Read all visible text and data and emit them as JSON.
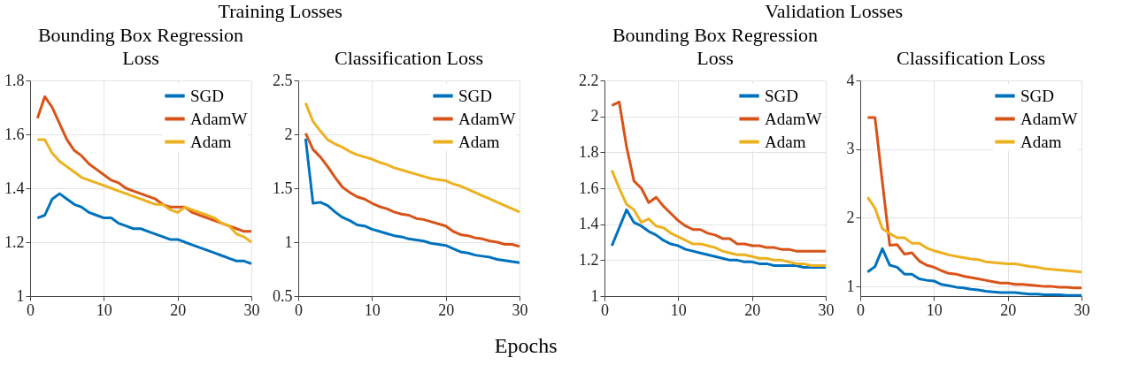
{
  "chart_data": [
    {
      "type": "line",
      "title": "Bounding Box Regression Loss",
      "annotations": [
        "Training Losses"
      ],
      "x": [
        1,
        2,
        3,
        4,
        5,
        6,
        7,
        8,
        9,
        10,
        11,
        12,
        13,
        14,
        15,
        16,
        17,
        18,
        19,
        20,
        21,
        22,
        23,
        24,
        25,
        26,
        27,
        28,
        29,
        30
      ],
      "xlim": [
        0,
        30
      ],
      "xticks": [
        0,
        10,
        20,
        30
      ],
      "ylim": [
        1,
        1.8
      ],
      "yticks": [
        1,
        1.2,
        1.4,
        1.6,
        1.8
      ],
      "grid": true,
      "legend": "top right",
      "line_style": "solid",
      "series": [
        {
          "name": "SGD",
          "color": "#0072bd",
          "values": [
            1.29,
            1.3,
            1.36,
            1.38,
            1.36,
            1.34,
            1.33,
            1.31,
            1.3,
            1.29,
            1.29,
            1.27,
            1.26,
            1.25,
            1.25,
            1.24,
            1.23,
            1.22,
            1.21,
            1.21,
            1.2,
            1.19,
            1.18,
            1.17,
            1.16,
            1.15,
            1.14,
            1.13,
            1.13,
            1.12
          ]
        },
        {
          "name": "AdamW",
          "color": "#d95319",
          "values": [
            1.66,
            1.74,
            1.7,
            1.64,
            1.58,
            1.54,
            1.52,
            1.49,
            1.47,
            1.45,
            1.43,
            1.42,
            1.4,
            1.39,
            1.38,
            1.37,
            1.36,
            1.34,
            1.33,
            1.33,
            1.33,
            1.31,
            1.3,
            1.29,
            1.28,
            1.27,
            1.26,
            1.25,
            1.24,
            1.24
          ]
        },
        {
          "name": "Adam",
          "color": "#edb120",
          "values": [
            1.58,
            1.58,
            1.53,
            1.5,
            1.48,
            1.46,
            1.44,
            1.43,
            1.42,
            1.41,
            1.4,
            1.39,
            1.38,
            1.37,
            1.36,
            1.35,
            1.34,
            1.34,
            1.32,
            1.31,
            1.33,
            1.32,
            1.31,
            1.3,
            1.29,
            1.27,
            1.26,
            1.23,
            1.22,
            1.2
          ]
        }
      ]
    },
    {
      "type": "line",
      "title": "Classification Loss",
      "xlabel": "Epochs",
      "x": [
        1,
        2,
        3,
        4,
        5,
        6,
        7,
        8,
        9,
        10,
        11,
        12,
        13,
        14,
        15,
        16,
        17,
        18,
        19,
        20,
        21,
        22,
        23,
        24,
        25,
        26,
        27,
        28,
        29,
        30
      ],
      "xlim": [
        0,
        30
      ],
      "xticks": [
        0,
        10,
        20,
        30
      ],
      "ylim": [
        0.5,
        2.5
      ],
      "yticks": [
        0.5,
        1,
        1.5,
        2,
        2.5
      ],
      "grid": true,
      "legend": "top right",
      "line_style": "solid",
      "series": [
        {
          "name": "SGD",
          "color": "#0072bd",
          "values": [
            1.96,
            1.36,
            1.37,
            1.34,
            1.28,
            1.23,
            1.2,
            1.16,
            1.15,
            1.12,
            1.1,
            1.08,
            1.06,
            1.05,
            1.03,
            1.02,
            1.01,
            0.99,
            0.98,
            0.97,
            0.94,
            0.91,
            0.9,
            0.88,
            0.87,
            0.86,
            0.84,
            0.83,
            0.82,
            0.81
          ]
        },
        {
          "name": "AdamW",
          "color": "#d95319",
          "values": [
            2.01,
            1.86,
            1.79,
            1.7,
            1.6,
            1.51,
            1.46,
            1.42,
            1.4,
            1.36,
            1.33,
            1.31,
            1.28,
            1.26,
            1.25,
            1.22,
            1.21,
            1.19,
            1.17,
            1.15,
            1.1,
            1.07,
            1.06,
            1.04,
            1.03,
            1.01,
            1.0,
            0.98,
            0.98,
            0.96
          ]
        },
        {
          "name": "Adam",
          "color": "#edb120",
          "values": [
            2.29,
            2.12,
            2.03,
            1.95,
            1.91,
            1.88,
            1.84,
            1.81,
            1.79,
            1.77,
            1.74,
            1.72,
            1.69,
            1.67,
            1.65,
            1.63,
            1.61,
            1.59,
            1.58,
            1.57,
            1.54,
            1.52,
            1.49,
            1.46,
            1.43,
            1.4,
            1.37,
            1.34,
            1.31,
            1.28
          ]
        }
      ]
    },
    {
      "type": "line",
      "title": "Bounding Box Regression Loss",
      "annotations": [
        "Validation Losses"
      ],
      "x": [
        1,
        2,
        3,
        4,
        5,
        6,
        7,
        8,
        9,
        10,
        11,
        12,
        13,
        14,
        15,
        16,
        17,
        18,
        19,
        20,
        21,
        22,
        23,
        24,
        25,
        26,
        27,
        28,
        29,
        30
      ],
      "xlim": [
        0,
        30
      ],
      "xticks": [
        0,
        10,
        20,
        30
      ],
      "ylim": [
        1,
        2.2
      ],
      "yticks": [
        1,
        1.2,
        1.4,
        1.6,
        1.8,
        2,
        2.2
      ],
      "grid": true,
      "legend": "top right",
      "line_style": "solid",
      "series": [
        {
          "name": "SGD",
          "color": "#0072bd",
          "values": [
            1.28,
            1.38,
            1.48,
            1.41,
            1.39,
            1.36,
            1.34,
            1.31,
            1.29,
            1.28,
            1.26,
            1.25,
            1.24,
            1.23,
            1.22,
            1.21,
            1.2,
            1.2,
            1.19,
            1.19,
            1.18,
            1.18,
            1.17,
            1.17,
            1.17,
            1.17,
            1.16,
            1.16,
            1.16,
            1.16
          ]
        },
        {
          "name": "AdamW",
          "color": "#d95319",
          "values": [
            2.06,
            2.08,
            1.83,
            1.64,
            1.6,
            1.52,
            1.55,
            1.5,
            1.46,
            1.42,
            1.39,
            1.37,
            1.37,
            1.35,
            1.34,
            1.32,
            1.32,
            1.29,
            1.29,
            1.28,
            1.28,
            1.27,
            1.27,
            1.26,
            1.26,
            1.25,
            1.25,
            1.25,
            1.25,
            1.25
          ]
        },
        {
          "name": "Adam",
          "color": "#edb120",
          "values": [
            1.7,
            1.6,
            1.51,
            1.48,
            1.41,
            1.43,
            1.39,
            1.38,
            1.35,
            1.33,
            1.31,
            1.29,
            1.29,
            1.28,
            1.27,
            1.25,
            1.24,
            1.23,
            1.23,
            1.22,
            1.21,
            1.21,
            1.2,
            1.2,
            1.19,
            1.18,
            1.18,
            1.17,
            1.17,
            1.17
          ]
        }
      ]
    },
    {
      "type": "line",
      "title": "Classification Loss",
      "x": [
        1,
        2,
        3,
        4,
        5,
        6,
        7,
        8,
        9,
        10,
        11,
        12,
        13,
        14,
        15,
        16,
        17,
        18,
        19,
        20,
        21,
        22,
        23,
        24,
        25,
        26,
        27,
        28,
        29,
        30
      ],
      "xlim": [
        0,
        30
      ],
      "xticks": [
        0,
        10,
        20,
        30
      ],
      "ylim": [
        0.86,
        4
      ],
      "yticks": [
        1,
        2,
        3,
        4
      ],
      "grid": true,
      "legend": "top right",
      "line_style": "solid",
      "series": [
        {
          "name": "SGD",
          "color": "#0072bd",
          "values": [
            1.21,
            1.29,
            1.55,
            1.31,
            1.28,
            1.18,
            1.18,
            1.11,
            1.09,
            1.08,
            1.03,
            1.01,
            0.99,
            0.98,
            0.96,
            0.95,
            0.93,
            0.92,
            0.91,
            0.91,
            0.91,
            0.9,
            0.89,
            0.89,
            0.88,
            0.88,
            0.88,
            0.87,
            0.87,
            0.87
          ]
        },
        {
          "name": "AdamW",
          "color": "#d95319",
          "values": [
            3.46,
            3.46,
            2.52,
            1.6,
            1.61,
            1.47,
            1.49,
            1.37,
            1.31,
            1.28,
            1.23,
            1.19,
            1.18,
            1.15,
            1.13,
            1.11,
            1.09,
            1.07,
            1.05,
            1.05,
            1.03,
            1.03,
            1.02,
            1.01,
            1.0,
            1.0,
            0.99,
            0.99,
            0.98,
            0.98
          ]
        },
        {
          "name": "Adam",
          "color": "#edb120",
          "values": [
            2.3,
            2.14,
            1.84,
            1.77,
            1.71,
            1.71,
            1.63,
            1.63,
            1.56,
            1.52,
            1.49,
            1.46,
            1.44,
            1.42,
            1.4,
            1.39,
            1.36,
            1.35,
            1.34,
            1.33,
            1.33,
            1.31,
            1.29,
            1.28,
            1.26,
            1.25,
            1.24,
            1.23,
            1.22,
            1.21
          ]
        }
      ]
    }
  ]
}
